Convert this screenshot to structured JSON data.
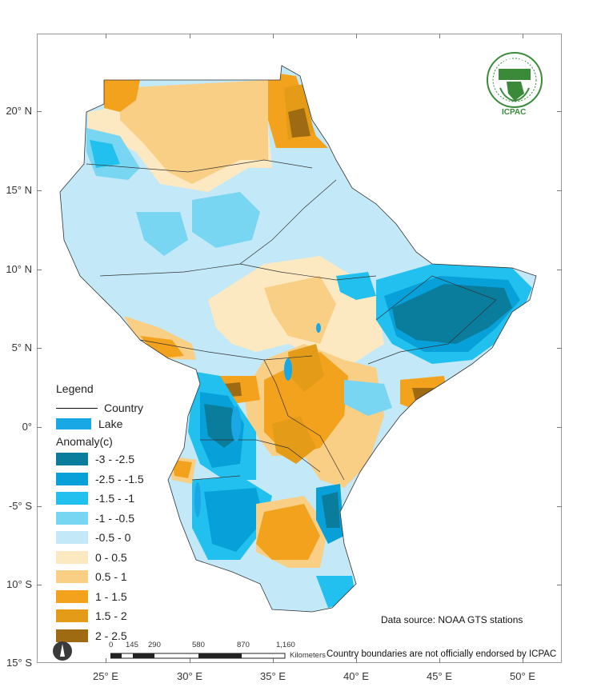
{
  "map": {
    "lat_labels": [
      "20° N",
      "15° N",
      "10° N",
      "5° N",
      "0°",
      "-5° S",
      "10° S",
      "15° S"
    ],
    "lon_labels": [
      "25° E",
      "30° E",
      "35° E",
      "40° E",
      "45° E",
      "50° E"
    ]
  },
  "legend": {
    "title": "Legend",
    "country_label": "Country",
    "lake_label": "Lake",
    "anomaly_title": "Anomaly(c)",
    "classes": [
      {
        "label": "-3 - -2.5",
        "color": "#0a7c9c"
      },
      {
        "label": "-2.5 - -1.5",
        "color": "#08a0d8"
      },
      {
        "label": "-1.5 - -1",
        "color": "#22c0ee"
      },
      {
        "label": "-1 - -0.5",
        "color": "#78d6f2"
      },
      {
        "label": "-0.5 - 0",
        "color": "#c3e8f7"
      },
      {
        "label": "0 - 0.5",
        "color": "#fde9c1"
      },
      {
        "label": "0.5 - 1",
        "color": "#f9cf86"
      },
      {
        "label": "1 - 1.5",
        "color": "#f3a21d"
      },
      {
        "label": "1.5 - 2",
        "color": "#e39b18"
      },
      {
        "label": "2 - 2.5",
        "color": "#9e6b12"
      }
    ],
    "lake_color": "#1aa7e6"
  },
  "scalebar": {
    "ticks": [
      "0",
      "145",
      "290",
      "580",
      "870",
      "1,160"
    ],
    "unit": "Kilometers"
  },
  "source_text": "Data source: NOAA   GTS stations",
  "disclaimer_text": "Country boundaries are not officially endorsed by ICPAC",
  "logo": {
    "top_text": "IGAD",
    "bottom_text": "ICPAC",
    "color": "#3a8a3a"
  }
}
